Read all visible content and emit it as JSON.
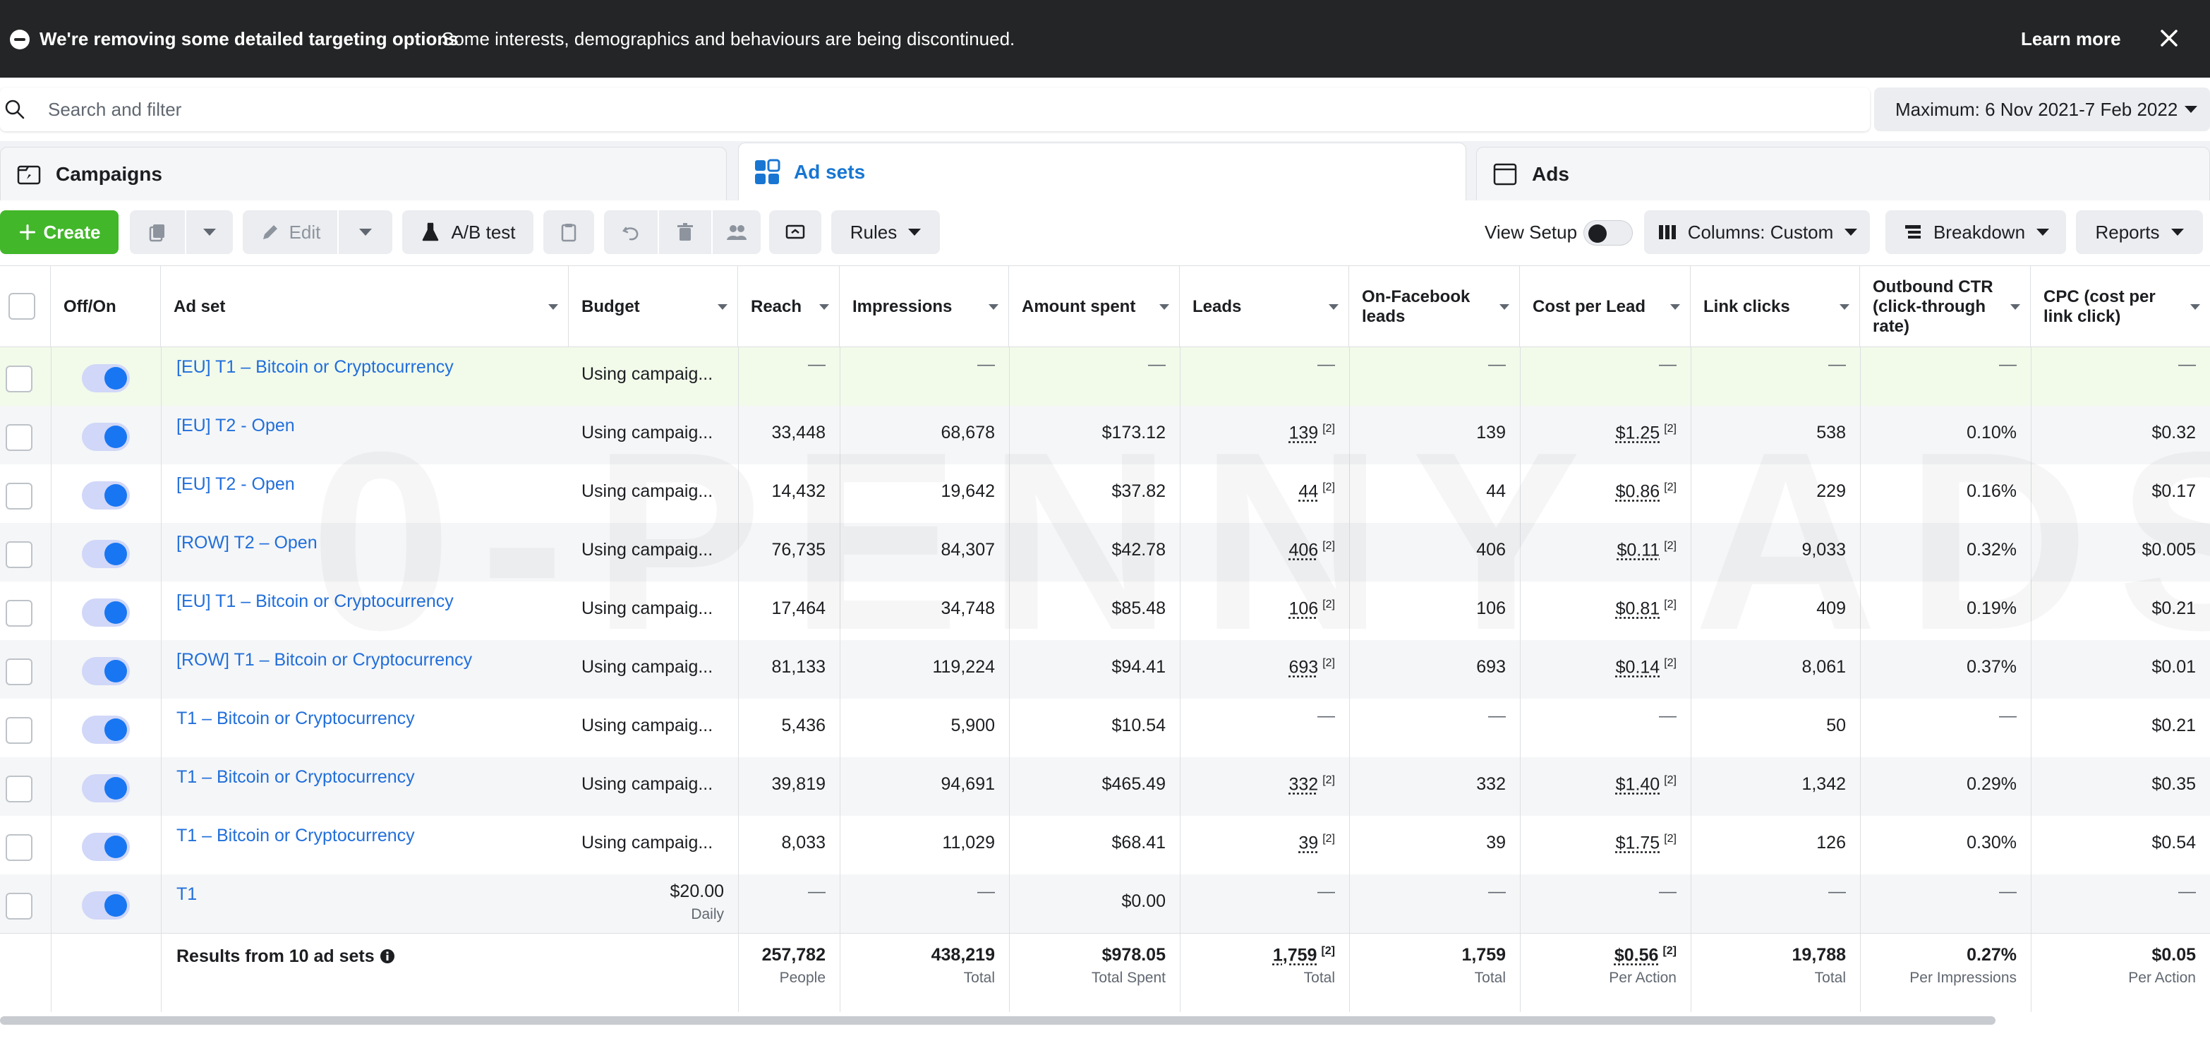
{
  "banner": {
    "title": "We're removing some detailed targeting options",
    "text": "Some interests, demographics and behaviours are being discontinued.",
    "learn_more": "Learn more"
  },
  "search": {
    "placeholder": "Search and filter"
  },
  "date_range": "Maximum: 6 Nov 2021-7 Feb 2022",
  "tabs": [
    {
      "label": "Campaigns",
      "icon": "campaigns-folder-icon",
      "active": false
    },
    {
      "label": "Ad sets",
      "icon": "ad-sets-grid-icon",
      "active": true
    },
    {
      "label": "Ads",
      "icon": "ads-window-icon",
      "active": false
    }
  ],
  "toolbar": {
    "create": "Create",
    "edit": "Edit",
    "ab_test": "A/B test",
    "rules": "Rules",
    "view_setup": "View Setup",
    "columns": "Columns: Custom",
    "breakdown": "Breakdown",
    "reports": "Reports"
  },
  "watermark": "0-PENNY ADS",
  "columns": [
    "Off/On",
    "Ad set",
    "Budget",
    "Reach",
    "Impressions",
    "Amount spent",
    "Leads",
    "On-Facebook leads",
    "Cost per Lead",
    "Link clicks",
    "Outbound CTR (click-through rate)",
    "CPC (cost per link click)"
  ],
  "rows": [
    {
      "name": "[EU] T1 – Bitcoin or Cryptocurrency",
      "budget": "Using campaig...",
      "budget_sub": "",
      "reach": "—",
      "impressions": "—",
      "spent": "—",
      "leads": "—",
      "fb_leads": "—",
      "cpl": "—",
      "clicks": "—",
      "ctr": "—",
      "cpc": "—"
    },
    {
      "name": "[EU] T2 - Open",
      "budget": "Using campaig...",
      "budget_sub": "",
      "reach": "33,448",
      "impressions": "68,678",
      "spent": "$173.12",
      "leads": "139",
      "fb_leads": "139",
      "cpl": "$1.25",
      "clicks": "538",
      "ctr": "0.10%",
      "cpc": "$0.32"
    },
    {
      "name": "[EU] T2 - Open",
      "budget": "Using campaig...",
      "budget_sub": "",
      "reach": "14,432",
      "impressions": "19,642",
      "spent": "$37.82",
      "leads": "44",
      "fb_leads": "44",
      "cpl": "$0.86",
      "clicks": "229",
      "ctr": "0.16%",
      "cpc": "$0.17"
    },
    {
      "name": "[ROW] T2 – Open",
      "budget": "Using campaig...",
      "budget_sub": "",
      "reach": "76,735",
      "impressions": "84,307",
      "spent": "$42.78",
      "leads": "406",
      "fb_leads": "406",
      "cpl": "$0.11",
      "clicks": "9,033",
      "ctr": "0.32%",
      "cpc": "$0.005"
    },
    {
      "name": "[EU] T1 – Bitcoin or Cryptocurrency",
      "budget": "Using campaig...",
      "budget_sub": "",
      "reach": "17,464",
      "impressions": "34,748",
      "spent": "$85.48",
      "leads": "106",
      "fb_leads": "106",
      "cpl": "$0.81",
      "clicks": "409",
      "ctr": "0.19%",
      "cpc": "$0.21"
    },
    {
      "name": "[ROW] T1 – Bitcoin or Cryptocurrency",
      "budget": "Using campaig...",
      "budget_sub": "",
      "reach": "81,133",
      "impressions": "119,224",
      "spent": "$94.41",
      "leads": "693",
      "fb_leads": "693",
      "cpl": "$0.14",
      "clicks": "8,061",
      "ctr": "0.37%",
      "cpc": "$0.01"
    },
    {
      "name": "T1 – Bitcoin or Cryptocurrency",
      "budget": "Using campaig...",
      "budget_sub": "",
      "reach": "5,436",
      "impressions": "5,900",
      "spent": "$10.54",
      "leads": "—",
      "fb_leads": "—",
      "cpl": "—",
      "clicks": "50",
      "ctr": "—",
      "cpc": "$0.21"
    },
    {
      "name": "T1 – Bitcoin or Cryptocurrency",
      "budget": "Using campaig...",
      "budget_sub": "",
      "reach": "39,819",
      "impressions": "94,691",
      "spent": "$465.49",
      "leads": "332",
      "fb_leads": "332",
      "cpl": "$1.40",
      "clicks": "1,342",
      "ctr": "0.29%",
      "cpc": "$0.35"
    },
    {
      "name": "T1 – Bitcoin or Cryptocurrency",
      "budget": "Using campaig...",
      "budget_sub": "",
      "reach": "8,033",
      "impressions": "11,029",
      "spent": "$68.41",
      "leads": "39",
      "fb_leads": "39",
      "cpl": "$1.75",
      "clicks": "126",
      "ctr": "0.30%",
      "cpc": "$0.54"
    },
    {
      "name": "T1",
      "budget": "$20.00",
      "budget_sub": "Daily",
      "reach": "—",
      "impressions": "—",
      "spent": "$0.00",
      "leads": "—",
      "fb_leads": "—",
      "cpl": "—",
      "clicks": "—",
      "ctr": "—",
      "cpc": "—"
    }
  ],
  "footnote_mark": "[2]",
  "totals": {
    "label": "Results from 10 ad sets",
    "reach": "257,782",
    "reach_sub": "People",
    "impressions": "438,219",
    "impressions_sub": "Total",
    "spent": "$978.05",
    "spent_sub": "Total Spent",
    "leads": "1,759",
    "leads_sub": "Total",
    "fb_leads": "1,759",
    "fb_leads_sub": "Total",
    "cpl": "$0.56",
    "cpl_sub": "Per Action",
    "clicks": "19,788",
    "clicks_sub": "Total",
    "ctr": "0.27%",
    "ctr_sub": "Per Impressions",
    "cpc": "$0.05",
    "cpc_sub": "Per Action"
  }
}
